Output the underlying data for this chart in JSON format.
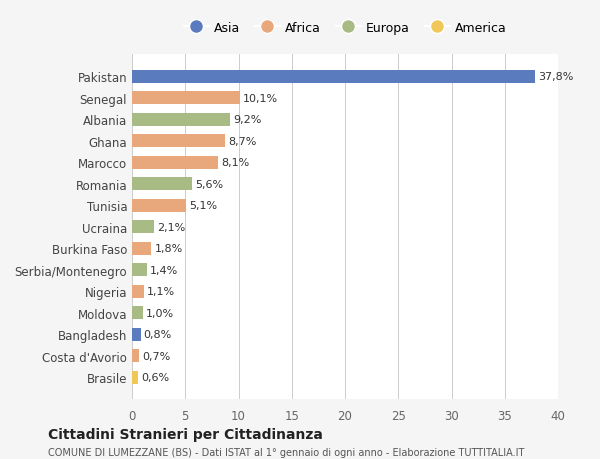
{
  "countries": [
    "Pakistan",
    "Senegal",
    "Albania",
    "Ghana",
    "Marocco",
    "Romania",
    "Tunisia",
    "Ucraina",
    "Burkina Faso",
    "Serbia/Montenegro",
    "Nigeria",
    "Moldova",
    "Bangladesh",
    "Costa d'Avorio",
    "Brasile"
  ],
  "values": [
    37.8,
    10.1,
    9.2,
    8.7,
    8.1,
    5.6,
    5.1,
    2.1,
    1.8,
    1.4,
    1.1,
    1.0,
    0.8,
    0.7,
    0.6
  ],
  "labels": [
    "37,8%",
    "10,1%",
    "9,2%",
    "8,7%",
    "8,1%",
    "5,6%",
    "5,1%",
    "2,1%",
    "1,8%",
    "1,4%",
    "1,1%",
    "1,0%",
    "0,8%",
    "0,7%",
    "0,6%"
  ],
  "continents": [
    "Asia",
    "Africa",
    "Europa",
    "Africa",
    "Africa",
    "Europa",
    "Africa",
    "Europa",
    "Africa",
    "Europa",
    "Africa",
    "Europa",
    "Asia",
    "Africa",
    "America"
  ],
  "colors": {
    "Asia": "#5b7bbf",
    "Africa": "#e8a87c",
    "Europa": "#a8bb85",
    "America": "#f0c85a"
  },
  "legend_order": [
    "Asia",
    "Africa",
    "Europa",
    "America"
  ],
  "xlim": [
    0,
    40
  ],
  "xticks": [
    0,
    5,
    10,
    15,
    20,
    25,
    30,
    35,
    40
  ],
  "title": "Cittadini Stranieri per Cittadinanza",
  "subtitle": "COMUNE DI LUMEZZANE (BS) - Dati ISTAT al 1° gennaio di ogni anno - Elaborazione TUTTITALIA.IT",
  "background_color": "#f5f5f5",
  "bar_bg_color": "#ffffff",
  "grid_color": "#cccccc"
}
